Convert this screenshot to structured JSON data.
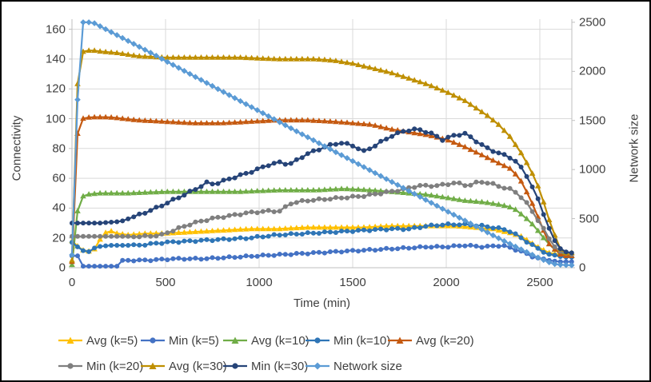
{
  "chart_data": {
    "type": "line",
    "title": "",
    "xlabel": "Time (min)",
    "ylabel_left": "Connectivity",
    "ylabel_right": "Network size",
    "x_ticks": [
      0,
      500,
      1000,
      1500,
      2000,
      2500
    ],
    "y_left_ticks": [
      0,
      20,
      40,
      60,
      80,
      100,
      120,
      140,
      160
    ],
    "y_right_ticks": [
      0,
      500,
      1000,
      1500,
      2000,
      2500
    ],
    "x_range": [
      0,
      2670
    ],
    "y_left_range": [
      0,
      167
    ],
    "y_right_range": [
      0,
      2530
    ],
    "grid": true,
    "grid_color": "#d9d9d9",
    "axis_color": "#bfbfbf",
    "legend_position": "bottom",
    "legend_rows": [
      [
        "Avg (k=5)",
        "Min (k=5)",
        "Avg (k=10)",
        "Min (k=10)",
        "Avg (k=20)"
      ],
      [
        "Min (k=20)",
        "Avg (k=30)",
        "Min (k=30)",
        "Network size"
      ]
    ],
    "series": [
      {
        "name": "Avg (k=5)",
        "color": "#FFC000",
        "marker": "triangle",
        "axis": "left",
        "jitter": 0,
        "points": [
          [
            0,
            18
          ],
          [
            25,
            15
          ],
          [
            50,
            12
          ],
          [
            90,
            11
          ],
          [
            130,
            13
          ],
          [
            160,
            22
          ],
          [
            200,
            25
          ],
          [
            240,
            23
          ],
          [
            300,
            22
          ],
          [
            400,
            23
          ],
          [
            500,
            23
          ],
          [
            650,
            24
          ],
          [
            800,
            25
          ],
          [
            950,
            26
          ],
          [
            1100,
            26
          ],
          [
            1250,
            27
          ],
          [
            1400,
            27
          ],
          [
            1550,
            27
          ],
          [
            1700,
            28
          ],
          [
            1850,
            28
          ],
          [
            1950,
            28
          ],
          [
            2050,
            28
          ],
          [
            2150,
            27
          ],
          [
            2250,
            26
          ],
          [
            2350,
            23
          ],
          [
            2400,
            21
          ],
          [
            2450,
            17
          ],
          [
            2500,
            13
          ],
          [
            2550,
            10
          ],
          [
            2600,
            9
          ],
          [
            2620,
            8
          ],
          [
            2670,
            8
          ]
        ]
      },
      {
        "name": "Min (k=5)",
        "color": "#4472C4",
        "marker": "circle",
        "axis": "left",
        "jitter": 0.45,
        "points": [
          [
            0,
            8
          ],
          [
            30,
            8
          ],
          [
            45,
            1
          ],
          [
            250,
            1
          ],
          [
            270,
            5
          ],
          [
            400,
            5
          ],
          [
            550,
            6
          ],
          [
            700,
            6
          ],
          [
            850,
            7
          ],
          [
            1000,
            8
          ],
          [
            1150,
            9
          ],
          [
            1300,
            10
          ],
          [
            1450,
            11
          ],
          [
            1600,
            12
          ],
          [
            1750,
            13
          ],
          [
            1900,
            14
          ],
          [
            2000,
            14
          ],
          [
            2100,
            15
          ],
          [
            2200,
            14
          ],
          [
            2300,
            15
          ],
          [
            2350,
            13
          ],
          [
            2400,
            11
          ],
          [
            2450,
            8
          ],
          [
            2500,
            6
          ],
          [
            2550,
            5
          ],
          [
            2600,
            4
          ],
          [
            2620,
            4
          ],
          [
            2670,
            4
          ]
        ]
      },
      {
        "name": "Avg (k=10)",
        "color": "#70AD47",
        "marker": "triangle",
        "axis": "left",
        "jitter": 0,
        "points": [
          [
            0,
            2
          ],
          [
            20,
            30
          ],
          [
            40,
            46
          ],
          [
            70,
            49
          ],
          [
            150,
            50
          ],
          [
            300,
            50
          ],
          [
            500,
            51
          ],
          [
            700,
            51
          ],
          [
            900,
            51
          ],
          [
            1100,
            52
          ],
          [
            1300,
            52
          ],
          [
            1450,
            53
          ],
          [
            1600,
            52
          ],
          [
            1700,
            51
          ],
          [
            1800,
            50
          ],
          [
            1900,
            49
          ],
          [
            2000,
            47
          ],
          [
            2100,
            45
          ],
          [
            2200,
            44
          ],
          [
            2300,
            42
          ],
          [
            2360,
            40
          ],
          [
            2420,
            34
          ],
          [
            2470,
            28
          ],
          [
            2520,
            20
          ],
          [
            2570,
            13
          ],
          [
            2620,
            9
          ],
          [
            2670,
            8
          ]
        ]
      },
      {
        "name": "Min (k=10)",
        "color": "#2E75B6",
        "marker": "circle",
        "axis": "left",
        "jitter": 0.5,
        "points": [
          [
            0,
            17
          ],
          [
            40,
            13
          ],
          [
            80,
            10
          ],
          [
            130,
            14
          ],
          [
            200,
            15
          ],
          [
            350,
            15
          ],
          [
            500,
            17
          ],
          [
            650,
            18
          ],
          [
            800,
            19
          ],
          [
            950,
            20
          ],
          [
            1100,
            22
          ],
          [
            1250,
            23
          ],
          [
            1400,
            24
          ],
          [
            1550,
            25
          ],
          [
            1700,
            26
          ],
          [
            1800,
            26
          ],
          [
            1900,
            28
          ],
          [
            2000,
            29
          ],
          [
            2100,
            29
          ],
          [
            2200,
            28
          ],
          [
            2300,
            26
          ],
          [
            2350,
            24
          ],
          [
            2400,
            20
          ],
          [
            2450,
            16
          ],
          [
            2500,
            12
          ],
          [
            2550,
            9
          ],
          [
            2600,
            8
          ],
          [
            2620,
            7
          ],
          [
            2670,
            7
          ]
        ]
      },
      {
        "name": "Avg (k=20)",
        "color": "#C55A11",
        "marker": "triangle",
        "axis": "left",
        "jitter": 0,
        "points": [
          [
            0,
            4
          ],
          [
            15,
            40
          ],
          [
            30,
            90
          ],
          [
            55,
            100
          ],
          [
            100,
            101
          ],
          [
            200,
            101
          ],
          [
            350,
            99
          ],
          [
            500,
            98
          ],
          [
            650,
            97
          ],
          [
            800,
            97
          ],
          [
            950,
            98
          ],
          [
            1100,
            99
          ],
          [
            1250,
            99
          ],
          [
            1400,
            98
          ],
          [
            1500,
            97
          ],
          [
            1600,
            96
          ],
          [
            1700,
            93
          ],
          [
            1800,
            91
          ],
          [
            1900,
            89
          ],
          [
            2000,
            86
          ],
          [
            2100,
            81
          ],
          [
            2200,
            75
          ],
          [
            2300,
            69
          ],
          [
            2350,
            66
          ],
          [
            2400,
            58
          ],
          [
            2450,
            46
          ],
          [
            2500,
            31
          ],
          [
            2550,
            16
          ],
          [
            2600,
            10
          ],
          [
            2620,
            8
          ],
          [
            2670,
            8
          ]
        ]
      },
      {
        "name": "Min (k=20)",
        "color": "#7F7F7F",
        "marker": "circle",
        "axis": "left",
        "jitter": 0.55,
        "points": [
          [
            0,
            21
          ],
          [
            200,
            21
          ],
          [
            400,
            21
          ],
          [
            480,
            22
          ],
          [
            560,
            26
          ],
          [
            650,
            30
          ],
          [
            750,
            33
          ],
          [
            850,
            35
          ],
          [
            950,
            37
          ],
          [
            1050,
            38
          ],
          [
            1120,
            38
          ],
          [
            1160,
            43
          ],
          [
            1250,
            45
          ],
          [
            1350,
            46
          ],
          [
            1450,
            47
          ],
          [
            1550,
            48
          ],
          [
            1650,
            50
          ],
          [
            1750,
            52
          ],
          [
            1850,
            55
          ],
          [
            1950,
            55
          ],
          [
            2050,
            57
          ],
          [
            2120,
            55
          ],
          [
            2180,
            58
          ],
          [
            2250,
            56
          ],
          [
            2300,
            54
          ],
          [
            2360,
            52
          ],
          [
            2420,
            45
          ],
          [
            2470,
            36
          ],
          [
            2520,
            26
          ],
          [
            2570,
            15
          ],
          [
            2620,
            10
          ],
          [
            2670,
            9
          ]
        ]
      },
      {
        "name": "Avg (k=30)",
        "color": "#BF8F00",
        "marker": "triangle",
        "axis": "left",
        "jitter": 0,
        "points": [
          [
            0,
            5
          ],
          [
            20,
            90
          ],
          [
            35,
            140
          ],
          [
            60,
            145
          ],
          [
            100,
            146
          ],
          [
            160,
            145
          ],
          [
            250,
            144
          ],
          [
            350,
            142
          ],
          [
            500,
            141
          ],
          [
            700,
            141
          ],
          [
            900,
            141
          ],
          [
            1100,
            140
          ],
          [
            1300,
            140
          ],
          [
            1400,
            139
          ],
          [
            1500,
            137
          ],
          [
            1600,
            134
          ],
          [
            1700,
            131
          ],
          [
            1800,
            127
          ],
          [
            1900,
            123
          ],
          [
            2000,
            118
          ],
          [
            2100,
            112
          ],
          [
            2160,
            107
          ],
          [
            2220,
            102
          ],
          [
            2280,
            96
          ],
          [
            2340,
            88
          ],
          [
            2400,
            77
          ],
          [
            2450,
            66
          ],
          [
            2500,
            52
          ],
          [
            2550,
            32
          ],
          [
            2600,
            15
          ],
          [
            2620,
            10
          ],
          [
            2670,
            10
          ]
        ]
      },
      {
        "name": "Min (k=30)",
        "color": "#264478",
        "marker": "circle",
        "axis": "left",
        "jitter": 0.6,
        "points": [
          [
            0,
            30
          ],
          [
            150,
            30
          ],
          [
            260,
            31
          ],
          [
            350,
            35
          ],
          [
            450,
            40
          ],
          [
            550,
            46
          ],
          [
            650,
            52
          ],
          [
            720,
            57
          ],
          [
            760,
            56
          ],
          [
            850,
            60
          ],
          [
            950,
            64
          ],
          [
            1050,
            69
          ],
          [
            1120,
            71
          ],
          [
            1160,
            69
          ],
          [
            1250,
            76
          ],
          [
            1350,
            81
          ],
          [
            1430,
            84
          ],
          [
            1500,
            82
          ],
          [
            1560,
            78
          ],
          [
            1620,
            82
          ],
          [
            1700,
            88
          ],
          [
            1780,
            92
          ],
          [
            1850,
            93
          ],
          [
            1920,
            90
          ],
          [
            1980,
            86
          ],
          [
            2050,
            89
          ],
          [
            2100,
            90
          ],
          [
            2160,
            85
          ],
          [
            2220,
            80
          ],
          [
            2300,
            76
          ],
          [
            2360,
            73
          ],
          [
            2420,
            64
          ],
          [
            2470,
            52
          ],
          [
            2520,
            36
          ],
          [
            2570,
            20
          ],
          [
            2620,
            11
          ],
          [
            2670,
            10
          ]
        ]
      },
      {
        "name": "Network size",
        "color": "#5B9BD5",
        "marker": "diamond",
        "axis": "right",
        "jitter": 0,
        "points": [
          [
            0,
            130
          ],
          [
            20,
            135
          ],
          [
            35,
            2500
          ],
          [
            110,
            2500
          ],
          [
            400,
            2210
          ],
          [
            800,
            1800
          ],
          [
            1200,
            1390
          ],
          [
            1600,
            985
          ],
          [
            2000,
            580
          ],
          [
            2300,
            280
          ],
          [
            2500,
            95
          ],
          [
            2570,
            40
          ],
          [
            2620,
            28
          ],
          [
            2670,
            25
          ]
        ]
      }
    ]
  }
}
